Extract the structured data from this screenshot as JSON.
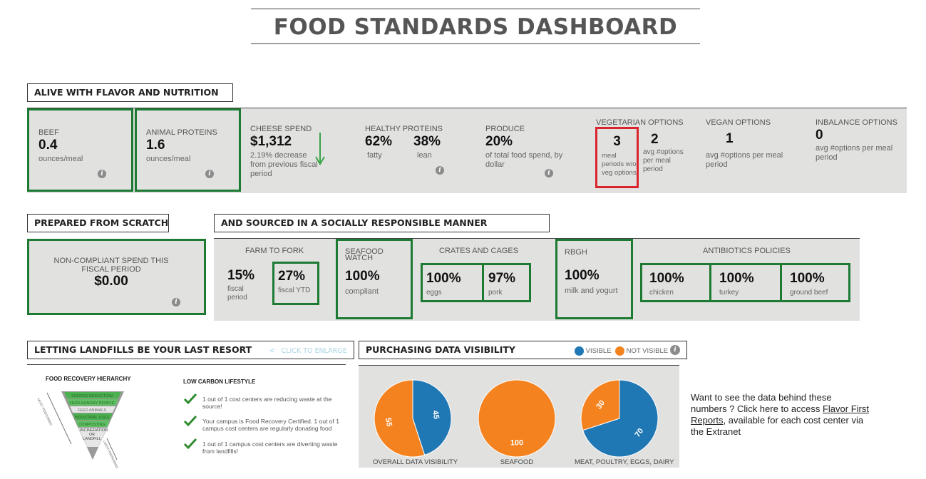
{
  "title": "FOOD STANDARDS DASHBOARD",
  "colors": {
    "green_border": "#1c7a33",
    "red_border": "#d9232d",
    "band": "#e1e1e0",
    "blue": "#1f77b4",
    "orange": "#f4821f"
  },
  "sections": {
    "flavor": "ALIVE WITH FLAVOR AND NUTRITION",
    "scratch": "PREPARED FROM SCRATCH",
    "social": "AND SOURCED IN A SOCIALLY RESPONSIBLE MANNER",
    "landfill": "LETTING LANDFILLS BE YOUR LAST RESORT",
    "click_enlarge": "CLICK TO ENLARGE",
    "purchasing": "PURCHASING DATA VISIBILITY"
  },
  "flavor": {
    "beef": {
      "label": "BEEF",
      "value": "0.4",
      "unit": "ounces/meal"
    },
    "animal": {
      "label": "ANIMAL PROTEINS",
      "value": "1.6",
      "unit": "ounces/meal"
    },
    "cheese": {
      "label": "CHEESE SPEND",
      "value": "$1,312",
      "note": "2.19% decrease from previous fiscal period"
    },
    "healthy": {
      "label": "HEALTHY PROTEINS",
      "v1": "62%",
      "l1": "fatty",
      "v2": "38%",
      "l2": "lean"
    },
    "produce": {
      "label": "PRODUCE",
      "value": "20%",
      "note": "of total food spend, by dollar"
    },
    "veg": {
      "label": "VEGETARIAN OPTIONS",
      "v1": "3",
      "l1": "meal periods w/o veg options",
      "v2": "2",
      "l2": "avg #options per meal period"
    },
    "vegan": {
      "label": "VEGAN OPTIONS",
      "value": "1",
      "note": "avg #options per meal period"
    },
    "inbalance": {
      "label": "INBALANCE OPTIONS",
      "value": "0",
      "note": "avg #options per meal period"
    }
  },
  "scratch": {
    "label": "NON-COMPLIANT SPEND THIS FISCAL PERIOD",
    "value": "$0.00"
  },
  "social": {
    "farm": {
      "label": "FARM TO FORK",
      "v1": "15%",
      "l1": "fiscal period",
      "v2": "27%",
      "l2": "fiscal YTD"
    },
    "seafood": {
      "label": "SEAFOOD WATCH",
      "value": "100%",
      "note": "compliant"
    },
    "crates": {
      "label": "CRATES AND CAGES",
      "v1": "100%",
      "l1": "eggs",
      "v2": "97%",
      "l2": "pork"
    },
    "rbgh": {
      "label": "RBGH",
      "value": "100%",
      "note": "milk and yogurt"
    },
    "antibiotics": {
      "label": "ANTIBIOTICS POLICIES",
      "v1": "100%",
      "l1": "chicken",
      "v2": "100%",
      "l2": "turkey",
      "v3": "100%",
      "l3": "ground beef"
    }
  },
  "landfill": {
    "hierarchy_title": "FOOD RECOVERY HIERARCHY",
    "levels": [
      "SOURCE REDUCTION",
      "FEED HUNGRY PEOPLE",
      "FEED ANIMALS",
      "INDUSTRIAL USES",
      "COMPOSTING",
      "INCINERATION OR LANDFILL"
    ],
    "side_left": "MOST PREFERRED",
    "side_right": "LEAST PREFERRED",
    "lc_title": "LOW CARBON LIFESTYLE",
    "items": [
      "1 out of 1 cost centers are reducing waste at the source!",
      "Your campus is Food Recovery Certified. 1 out of 1 campus cost centers are regularly donating food",
      "1 out of 1 campus cost centers are diverting waste from landfills!"
    ]
  },
  "purchasing": {
    "legend_visible": "VISIBLE",
    "legend_not_visible": "NOT VISIBLE",
    "cta_text": "Want to see the data behind these numbers ? Click here to access ",
    "cta_link": "Flavor First Reports",
    "cta_tail": ", available for each cost center via the Extranet"
  },
  "chart_data": [
    {
      "type": "pie",
      "title": "OVERALL DATA VISIBILITY",
      "categories": [
        "VISIBLE",
        "NOT VISIBLE"
      ],
      "values": [
        45,
        55
      ],
      "labels": [
        "45",
        "55"
      ]
    },
    {
      "type": "pie",
      "title": "SEAFOOD",
      "categories": [
        "VISIBLE",
        "NOT VISIBLE"
      ],
      "values": [
        0,
        100
      ],
      "labels": [
        "",
        "100"
      ]
    },
    {
      "type": "pie",
      "title": "MEAT, POULTRY, EGGS, DAIRY",
      "categories": [
        "VISIBLE",
        "NOT VISIBLE"
      ],
      "values": [
        70,
        30
      ],
      "labels": [
        "70",
        "30"
      ]
    }
  ]
}
